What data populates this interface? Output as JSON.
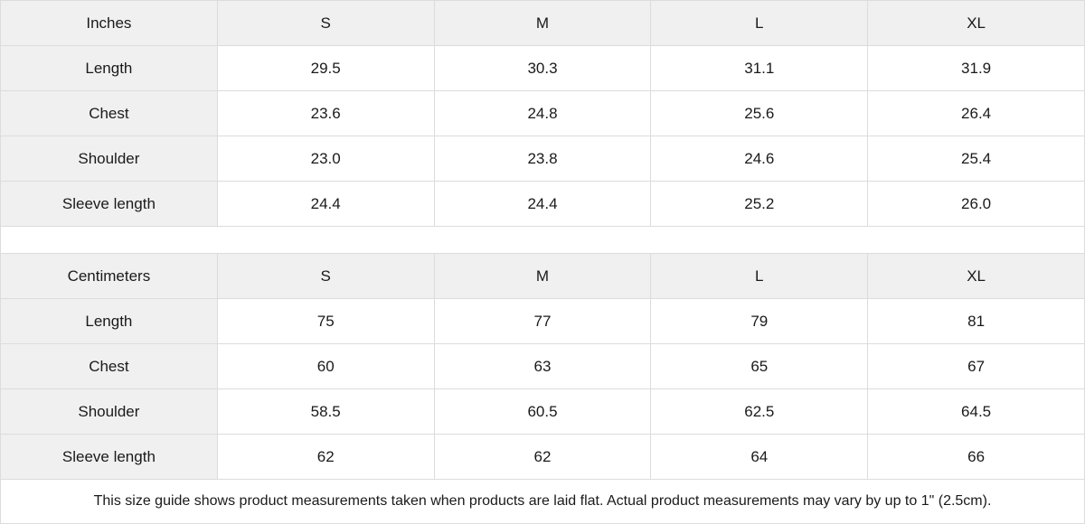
{
  "inches": {
    "header": [
      "Inches",
      "S",
      "M",
      "L",
      "XL"
    ],
    "rows": [
      [
        "Length",
        "29.5",
        "30.3",
        "31.1",
        "31.9"
      ],
      [
        "Chest",
        "23.6",
        "24.8",
        "25.6",
        "26.4"
      ],
      [
        "Shoulder",
        "23.0",
        "23.8",
        "24.6",
        "25.4"
      ],
      [
        "Sleeve length",
        "24.4",
        "24.4",
        "25.2",
        "26.0"
      ]
    ]
  },
  "centimeters": {
    "header": [
      "Centimeters",
      "S",
      "M",
      "L",
      "XL"
    ],
    "rows": [
      [
        "Length",
        "75",
        "77",
        "79",
        "81"
      ],
      [
        "Chest",
        "60",
        "63",
        "65",
        "67"
      ],
      [
        "Shoulder",
        "58.5",
        "60.5",
        "62.5",
        "64.5"
      ],
      [
        "Sleeve length",
        "62",
        "62",
        "64",
        "66"
      ]
    ]
  },
  "note": "This size guide shows product measurements taken when products are laid flat.  Actual product measurements may vary by up to 1\" (2.5cm).",
  "colors": {
    "header_bg": "#f0f0f0",
    "border": "#dcdcdc"
  }
}
